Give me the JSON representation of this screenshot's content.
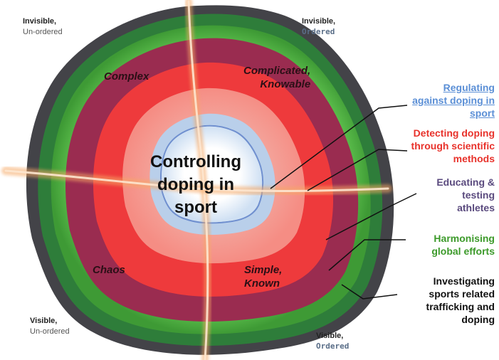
{
  "center_label": [
    "Controlling",
    "doping in",
    "sport"
  ],
  "corners": {
    "top_left": {
      "line1": "Invisible,",
      "line2": "Un-ordered"
    },
    "top_right": {
      "line1": "Invisible,",
      "line2": "Ordered"
    },
    "bottom_left": {
      "line1": "Visible,",
      "line2": "Un-ordered"
    },
    "bottom_right": {
      "line1": "Visible,",
      "line2": "Ordered"
    }
  },
  "quadrants": {
    "top_left": [
      "Complex"
    ],
    "top_right": [
      "Complicated,",
      "Knowable"
    ],
    "bottom_left": [
      "Chaos"
    ],
    "bottom_right": [
      "Simple,",
      "Known"
    ]
  },
  "legend": [
    {
      "lines": [
        "Regulating",
        "against doping in",
        "sport"
      ],
      "color": "#5b8fd6",
      "underline": true
    },
    {
      "lines": [
        "Detecting doping",
        "through scientific",
        "methods"
      ],
      "color": "#e8322b",
      "underline": false
    },
    {
      "lines": [
        "Educating &",
        "testing",
        "athletes"
      ],
      "color": "#5a4a7e",
      "underline": false
    },
    {
      "lines": [
        "Harmonising",
        "global efforts"
      ],
      "color": "#3c9a2a",
      "underline": false
    },
    {
      "lines": [
        "Investigating",
        "sports related",
        "trafficking and",
        "doping"
      ],
      "color": "#111111",
      "underline": false
    }
  ],
  "colors": {
    "ring_outer_dark": "#3f3f46",
    "ring_dark_green": "#2f7a3a",
    "ring_light_green": "#5cc44a",
    "ring_maroon": "#9b2b4e",
    "ring_red": "#ee3b3b",
    "ring_blush": "#f7a8a0",
    "ring_pale_blue": "#bcd2ec",
    "ring_blue_edge": "#6f8fcf",
    "core_white": "#ffffff",
    "stroke_orange": "#f5b072",
    "leader_line": "#111111"
  }
}
